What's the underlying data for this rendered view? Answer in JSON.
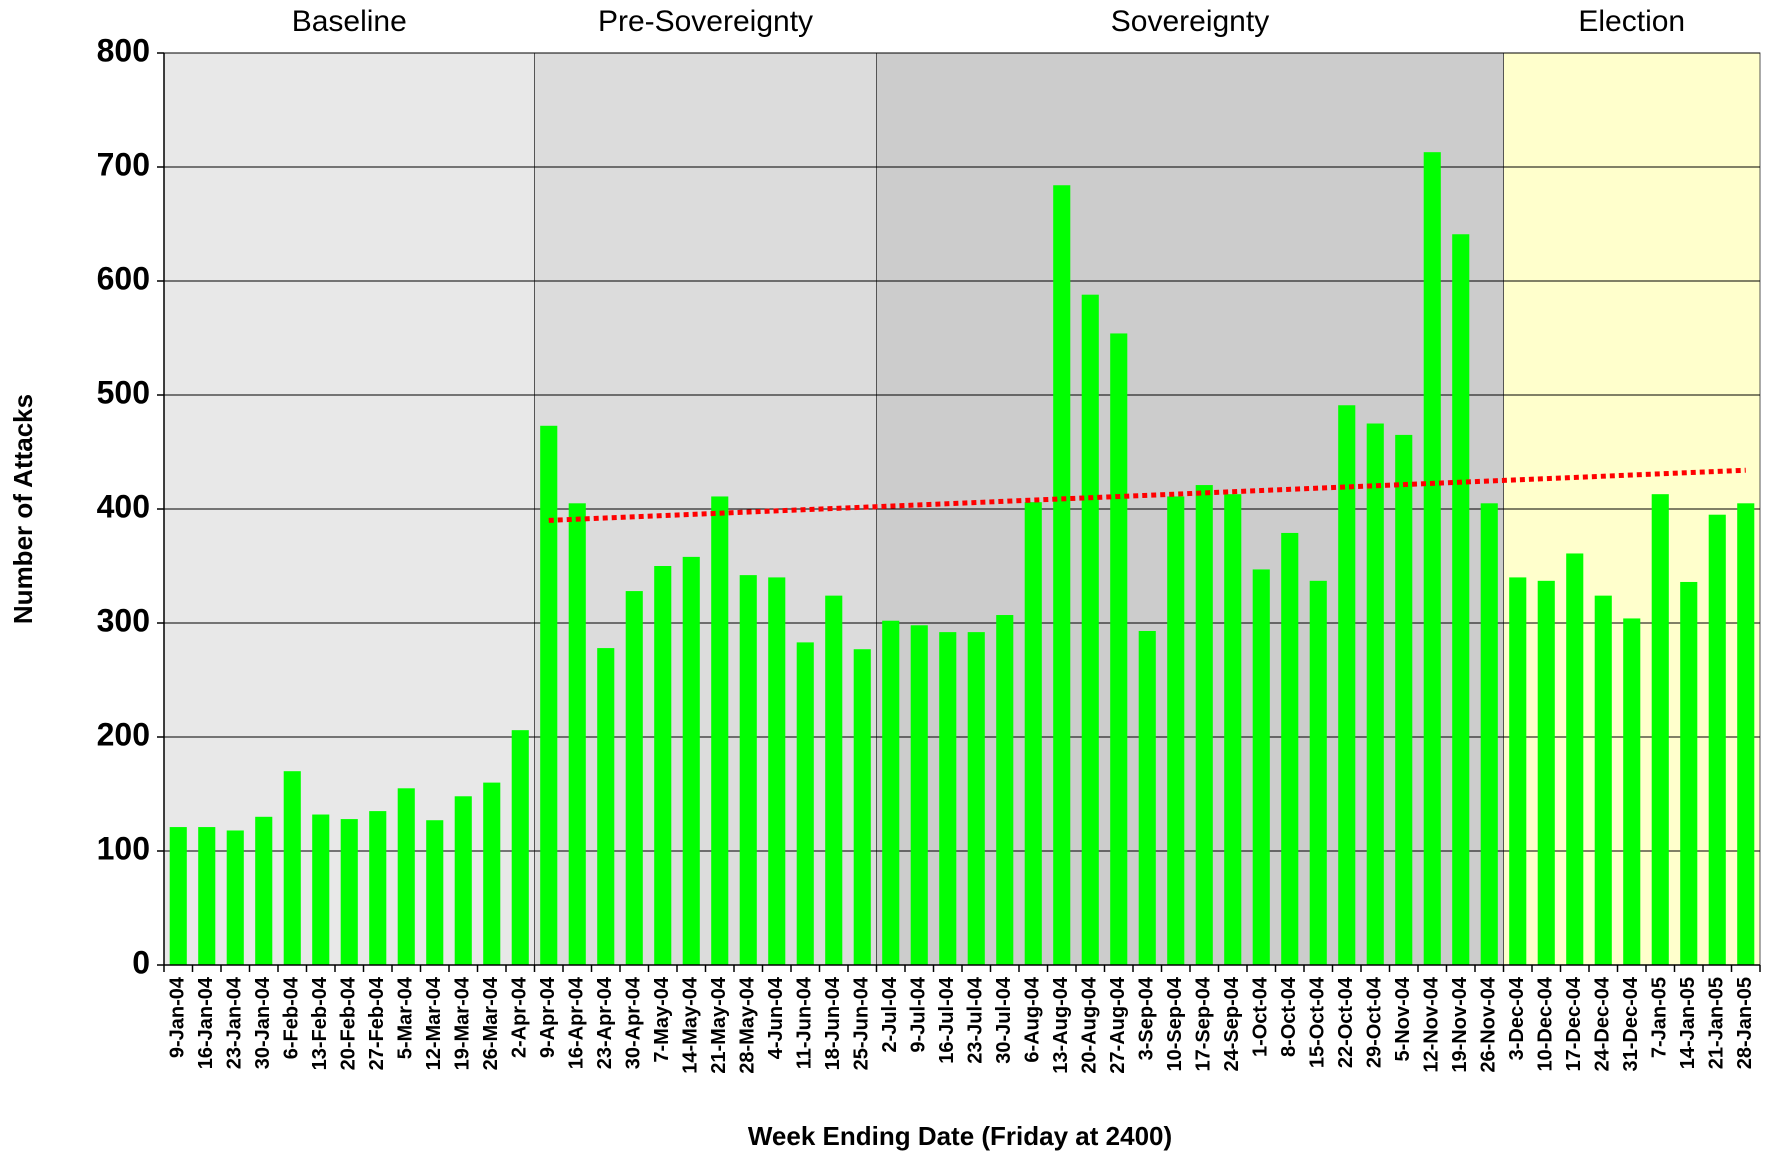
{
  "chart_data": {
    "type": "bar",
    "x_label": "Week Ending Date (Friday at 2400)",
    "y_label": "Number of Attacks",
    "categories": [
      "9-Jan-04",
      "16-Jan-04",
      "23-Jan-04",
      "30-Jan-04",
      "6-Feb-04",
      "13-Feb-04",
      "20-Feb-04",
      "27-Feb-04",
      "5-Mar-04",
      "12-Mar-04",
      "19-Mar-04",
      "26-Mar-04",
      "2-Apr-04",
      "9-Apr-04",
      "16-Apr-04",
      "23-Apr-04",
      "30-Apr-04",
      "7-May-04",
      "14-May-04",
      "21-May-04",
      "28-May-04",
      "4-Jun-04",
      "11-Jun-04",
      "18-Jun-04",
      "25-Jun-04",
      "2-Jul-04",
      "9-Jul-04",
      "16-Jul-04",
      "23-Jul-04",
      "30-Jul-04",
      "6-Aug-04",
      "13-Aug-04",
      "20-Aug-04",
      "27-Aug-04",
      "3-Sep-04",
      "10-Sep-04",
      "17-Sep-04",
      "24-Sep-04",
      "1-Oct-04",
      "8-Oct-04",
      "15-Oct-04",
      "22-Oct-04",
      "29-Oct-04",
      "5-Nov-04",
      "12-Nov-04",
      "19-Nov-04",
      "26-Nov-04",
      "3-Dec-04",
      "10-Dec-04",
      "17-Dec-04",
      "24-Dec-04",
      "31-Dec-04",
      "7-Jan-05",
      "14-Jan-05",
      "21-Jan-05",
      "28-Jan-05"
    ],
    "values": [
      121,
      121,
      118,
      130,
      170,
      132,
      128,
      135,
      155,
      127,
      148,
      160,
      206,
      473,
      405,
      278,
      328,
      350,
      358,
      411,
      342,
      340,
      283,
      324,
      277,
      302,
      298,
      292,
      292,
      307,
      406,
      684,
      588,
      554,
      293,
      411,
      421,
      413,
      347,
      379,
      337,
      491,
      475,
      465,
      713,
      641,
      405,
      340,
      337,
      361,
      324,
      304,
      413,
      336,
      395,
      405
    ],
    "color": "#00ff00",
    "ylim": [
      0,
      800
    ],
    "yticks": [
      0,
      100,
      200,
      300,
      400,
      500,
      600,
      700,
      800
    ],
    "grid": true,
    "periods": [
      {
        "label": "Baseline",
        "start": "9-Jan-04",
        "end": "2-Apr-04",
        "color": "#e8e8e8"
      },
      {
        "label": "Pre-Sovereignty",
        "start": "9-Apr-04",
        "end": "25-Jun-04",
        "color": "#dcdcdc"
      },
      {
        "label": "Sovereignty",
        "start": "2-Jul-04",
        "end": "26-Nov-04",
        "color": "#cccccc"
      },
      {
        "label": "Election",
        "start": "3-Dec-04",
        "end": "28-Jan-05",
        "color": "#ffffcc"
      }
    ],
    "trend": {
      "x": [
        "9-Apr-04",
        "28-Jan-05"
      ],
      "values": [
        390,
        434
      ],
      "color": "#ff0000"
    }
  }
}
